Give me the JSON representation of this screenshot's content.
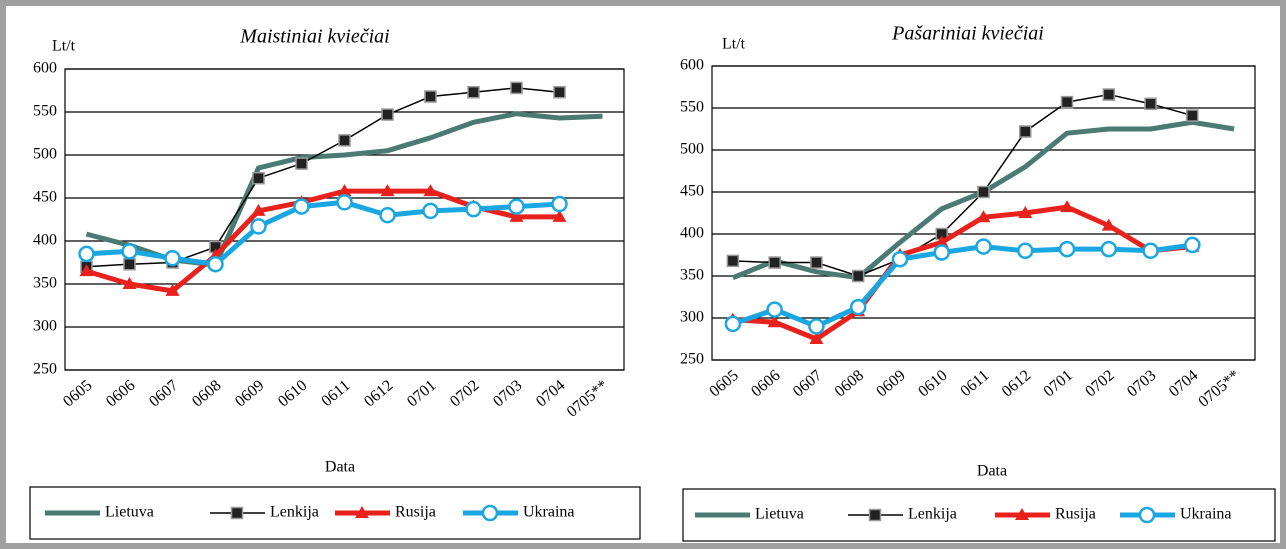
{
  "chart_data": [
    {
      "type": "line",
      "title": "Maistiniai kviečiai",
      "y_label": "Lt/t",
      "x_label": "Data",
      "categories": [
        "0605",
        "0606",
        "0607",
        "0608",
        "0609",
        "0610",
        "0611",
        "0612",
        "0701",
        "0702",
        "0703",
        "0704",
        "0705**"
      ],
      "ylim": [
        250,
        600
      ],
      "yticks": [
        250,
        300,
        350,
        400,
        450,
        500,
        550,
        600
      ],
      "grid": true,
      "series": [
        {
          "name": "Lietuva",
          "color": "#4a7a72",
          "marker": "none",
          "values": [
            408,
            395,
            378,
            372,
            485,
            497,
            500,
            505,
            520,
            538,
            548,
            543,
            545
          ]
        },
        {
          "name": "Lenkija",
          "color": "#000000",
          "marker": "square",
          "values": [
            370,
            373,
            375,
            393,
            473,
            490,
            517,
            547,
            568,
            573,
            578,
            573,
            null
          ]
        },
        {
          "name": "Rusija",
          "color": "#e8211d",
          "marker": "triangle",
          "values": [
            365,
            350,
            342,
            383,
            435,
            445,
            458,
            458,
            458,
            440,
            428,
            428,
            null
          ]
        },
        {
          "name": "Ukraina",
          "color": "#1aa6e0",
          "marker": "circle",
          "values": [
            385,
            388,
            380,
            373,
            417,
            440,
            445,
            430,
            435,
            437,
            440,
            443,
            null
          ]
        }
      ]
    },
    {
      "type": "line",
      "title": "Pašariniai kviečiai",
      "y_label": "Lt/t",
      "x_label": "Data",
      "categories": [
        "0605",
        "0606",
        "0607",
        "0608",
        "0609",
        "0610",
        "0611",
        "0612",
        "0701",
        "0702",
        "0703",
        "0704",
        "0705**"
      ],
      "ylim": [
        250,
        600
      ],
      "yticks": [
        250,
        300,
        350,
        400,
        450,
        500,
        550,
        600
      ],
      "grid": true,
      "series": [
        {
          "name": "Lietuva",
          "color": "#4a7a72",
          "marker": "none",
          "values": [
            348,
            368,
            355,
            348,
            390,
            430,
            450,
            480,
            520,
            525,
            525,
            533,
            525
          ]
        },
        {
          "name": "Lenkija",
          "color": "#000000",
          "marker": "square",
          "values": [
            368,
            366,
            366,
            350,
            370,
            400,
            450,
            522,
            557,
            566,
            555,
            541,
            null
          ]
        },
        {
          "name": "Rusija",
          "color": "#e8211d",
          "marker": "triangle",
          "values": [
            298,
            295,
            275,
            308,
            375,
            390,
            420,
            425,
            432,
            410,
            380,
            385,
            null
          ]
        },
        {
          "name": "Ukraina",
          "color": "#1aa6e0",
          "marker": "circle",
          "values": [
            293,
            310,
            290,
            313,
            370,
            378,
            385,
            380,
            382,
            382,
            380,
            387,
            null
          ]
        }
      ]
    }
  ]
}
